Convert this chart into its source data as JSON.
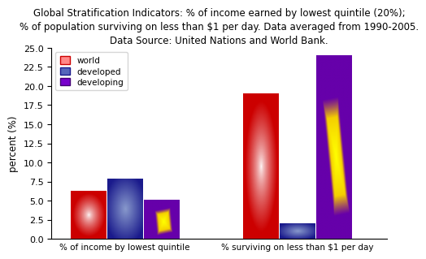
{
  "title_line1": "Global Stratification Indicators: % of income earned by lowest quintile (20%);",
  "title_line2": "% of population surviving on less than $1 per day. Data averaged from 1990-2005.",
  "title_line3": "Data Source: United Nations and World Bank.",
  "ylabel": "percent (%)",
  "categories": [
    "% of income by lowest quintile",
    "% surviving on less than $1 per day"
  ],
  "series": [
    "world",
    "developed",
    "developing"
  ],
  "values": [
    [
      6.2,
      7.8,
      5.0
    ],
    [
      19.0,
      2.0,
      24.0
    ]
  ],
  "ylim": [
    0,
    25
  ],
  "yticks": [
    0,
    2.5,
    5,
    7.5,
    10,
    12.5,
    15,
    17.5,
    20,
    22.5,
    25
  ],
  "background_color": "#ffffff",
  "title_fontsize": 8.5,
  "legend_labels": [
    "world",
    "developed",
    "developing"
  ],
  "group_positions": [
    0.28,
    0.82
  ],
  "bar_width": 0.11,
  "xlim": [
    0.05,
    1.1
  ]
}
